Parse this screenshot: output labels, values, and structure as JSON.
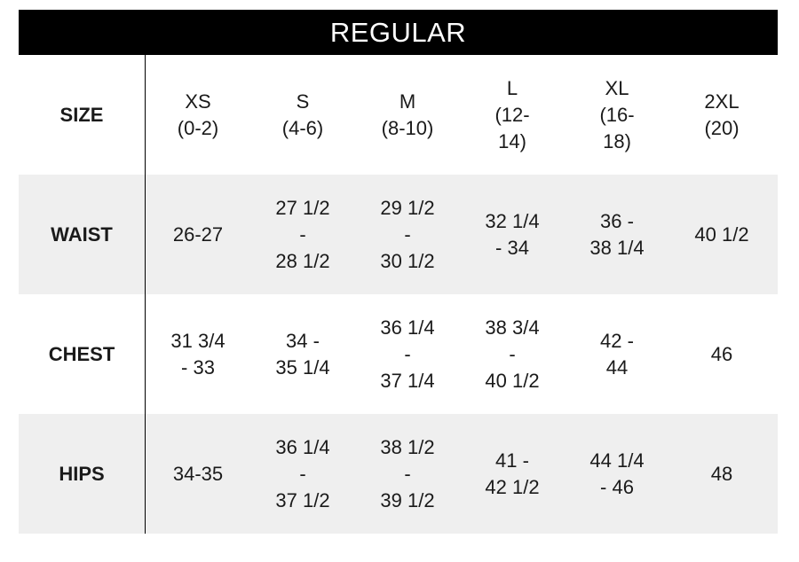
{
  "title": "REGULAR",
  "header": {
    "label": "SIZE",
    "sizes": [
      "XS\n(0-2)",
      "S\n(4-6)",
      "M\n(8-10)",
      "L\n(12-\n14)",
      "XL\n(16-\n18)",
      "2XL\n(20)"
    ]
  },
  "rows": [
    {
      "label": "WAIST",
      "values": [
        "26-27",
        "27 1/2\n-\n28 1/2",
        "29 1/2\n-\n30 1/2",
        "32 1/4\n- 34",
        "36 -\n38 1/4",
        "40 1/2"
      ]
    },
    {
      "label": "CHEST",
      "values": [
        "31 3/4\n- 33",
        "34 -\n35 1/4",
        "36 1/4\n-\n37 1/4",
        "38 3/4\n-\n40 1/2",
        "42 -\n44",
        "46"
      ]
    },
    {
      "label": "HIPS",
      "values": [
        "34-35",
        "36 1/4\n-\n37 1/2",
        "38 1/2\n-\n39 1/2",
        "41 -\n42 1/2",
        "44 1/4\n- 46",
        "48"
      ]
    }
  ]
}
